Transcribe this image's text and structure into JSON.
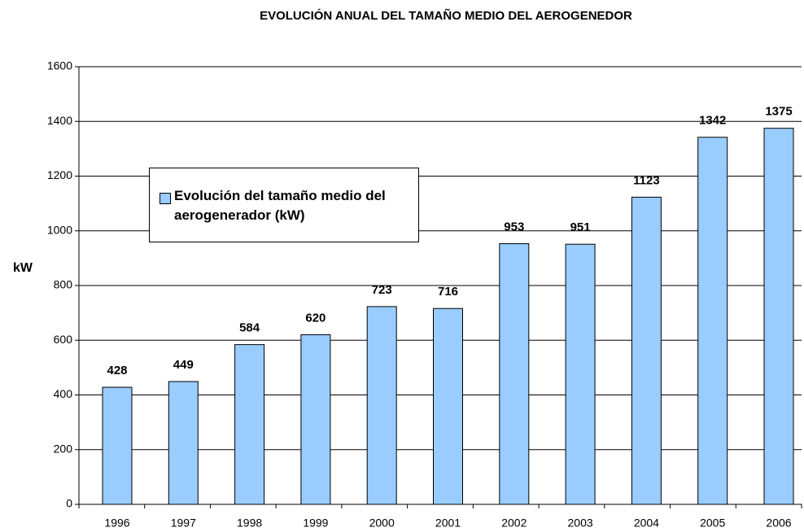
{
  "chart_data": {
    "type": "bar",
    "title": "EVOLUCIÓN ANUAL DEL TAMAÑO MEDIO DEL AEROGENEDOR",
    "ylabel": "kW",
    "categories": [
      "1996",
      "1997",
      "1998",
      "1999",
      "2000",
      "2001",
      "2002",
      "2003",
      "2004",
      "2005",
      "2006"
    ],
    "series": [
      {
        "name": "Evolución del tamaño medio del aerogenerador (kW)",
        "color": "#99ccff",
        "values": [
          428,
          449,
          584,
          620,
          723,
          716,
          953,
          951,
          1123,
          1342,
          1375
        ]
      }
    ],
    "ylim": [
      0,
      1600
    ],
    "yticks": [
      0,
      200,
      400,
      600,
      800,
      1000,
      1200,
      1400,
      1600
    ],
    "grid": true
  }
}
